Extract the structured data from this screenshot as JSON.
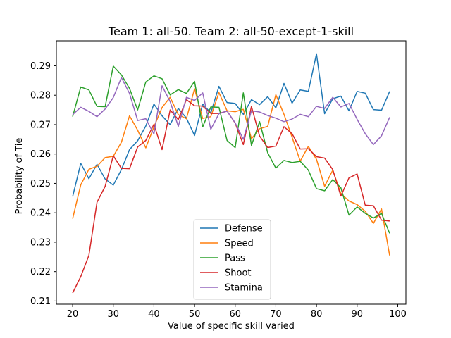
{
  "chart_data": {
    "type": "line",
    "title": "Team 1: all-50.  Team 2: all-50-except-1-skill",
    "xlabel": "Value of specific skill varied",
    "ylabel": "Probability of Tie",
    "xlim": [
      16,
      102
    ],
    "ylim": [
      0.2089,
      0.2985
    ],
    "xticks": [
      20,
      30,
      40,
      50,
      60,
      70,
      80,
      90,
      100
    ],
    "yticks": [
      0.21,
      0.22,
      0.23,
      0.24,
      0.25,
      0.26,
      0.27,
      0.28,
      0.29
    ],
    "legend_position": "lower-center",
    "grid": false,
    "x": [
      20,
      22,
      24,
      26,
      28,
      30,
      32,
      34,
      36,
      38,
      40,
      42,
      44,
      46,
      48,
      50,
      52,
      54,
      56,
      58,
      60,
      62,
      64,
      66,
      68,
      70,
      72,
      74,
      76,
      78,
      80,
      82,
      84,
      86,
      88,
      90,
      92,
      94,
      96,
      98
    ],
    "series": [
      {
        "name": "Defense",
        "color": "#1f77b4",
        "values": [
          0.2455,
          0.2568,
          0.2516,
          0.2565,
          0.2515,
          0.2494,
          0.2547,
          0.2615,
          0.2645,
          0.2695,
          0.277,
          0.273,
          0.27,
          0.2755,
          0.2722,
          0.2663,
          0.277,
          0.274,
          0.283,
          0.2775,
          0.2772,
          0.2735,
          0.2785,
          0.2768,
          0.2795,
          0.2757,
          0.284,
          0.2773,
          0.2818,
          0.2813,
          0.2941,
          0.2737,
          0.2788,
          0.2797,
          0.2747,
          0.2813,
          0.2807,
          0.2751,
          0.2749,
          0.2813
        ]
      },
      {
        "name": "Speed",
        "color": "#ff7f0e",
        "values": [
          0.238,
          0.2495,
          0.2548,
          0.2558,
          0.2588,
          0.2592,
          0.264,
          0.273,
          0.2681,
          0.2621,
          0.2692,
          0.2758,
          0.2793,
          0.2734,
          0.272,
          0.2822,
          0.2721,
          0.2727,
          0.2809,
          0.2747,
          0.2744,
          0.2752,
          0.2652,
          0.2686,
          0.2694,
          0.2802,
          0.2735,
          0.2657,
          0.2576,
          0.2626,
          0.2582,
          0.249,
          0.2545,
          0.2466,
          0.244,
          0.2428,
          0.2405,
          0.2364,
          0.2413,
          0.2255
        ]
      },
      {
        "name": "Pass",
        "color": "#2ca02c",
        "values": [
          0.2727,
          0.2828,
          0.2818,
          0.2762,
          0.2761,
          0.2899,
          0.2869,
          0.2823,
          0.275,
          0.2845,
          0.2866,
          0.2856,
          0.2801,
          0.2819,
          0.2806,
          0.2847,
          0.2692,
          0.276,
          0.2759,
          0.2646,
          0.2622,
          0.2808,
          0.2629,
          0.271,
          0.2604,
          0.2552,
          0.2578,
          0.2571,
          0.2575,
          0.2545,
          0.2482,
          0.2475,
          0.2513,
          0.2485,
          0.2392,
          0.242,
          0.2398,
          0.2382,
          0.2398,
          0.233
        ]
      },
      {
        "name": "Shoot",
        "color": "#d62728",
        "values": [
          0.2127,
          0.2183,
          0.2255,
          0.2436,
          0.249,
          0.2594,
          0.2551,
          0.255,
          0.2624,
          0.2646,
          0.2701,
          0.2615,
          0.275,
          0.2717,
          0.2785,
          0.2764,
          0.2763,
          0.2738,
          0.2738,
          0.2746,
          0.2705,
          0.2632,
          0.2762,
          0.2661,
          0.2622,
          0.2627,
          0.2693,
          0.2669,
          0.2617,
          0.2618,
          0.2591,
          0.2586,
          0.2547,
          0.2457,
          0.2519,
          0.2532,
          0.2426,
          0.2424,
          0.2375,
          0.2372
        ]
      },
      {
        "name": "Stamina",
        "color": "#9467bd",
        "values": [
          0.2734,
          0.2759,
          0.2745,
          0.2727,
          0.2753,
          0.2792,
          0.286,
          0.2806,
          0.2714,
          0.272,
          0.2668,
          0.2832,
          0.2778,
          0.2694,
          0.2793,
          0.2782,
          0.2808,
          0.2684,
          0.2737,
          0.2746,
          0.2706,
          0.265,
          0.2747,
          0.2743,
          0.2731,
          0.2722,
          0.271,
          0.2719,
          0.2735,
          0.2727,
          0.2762,
          0.2755,
          0.2793,
          0.276,
          0.2772,
          0.2718,
          0.2669,
          0.2632,
          0.2662,
          0.2725
        ]
      }
    ]
  }
}
